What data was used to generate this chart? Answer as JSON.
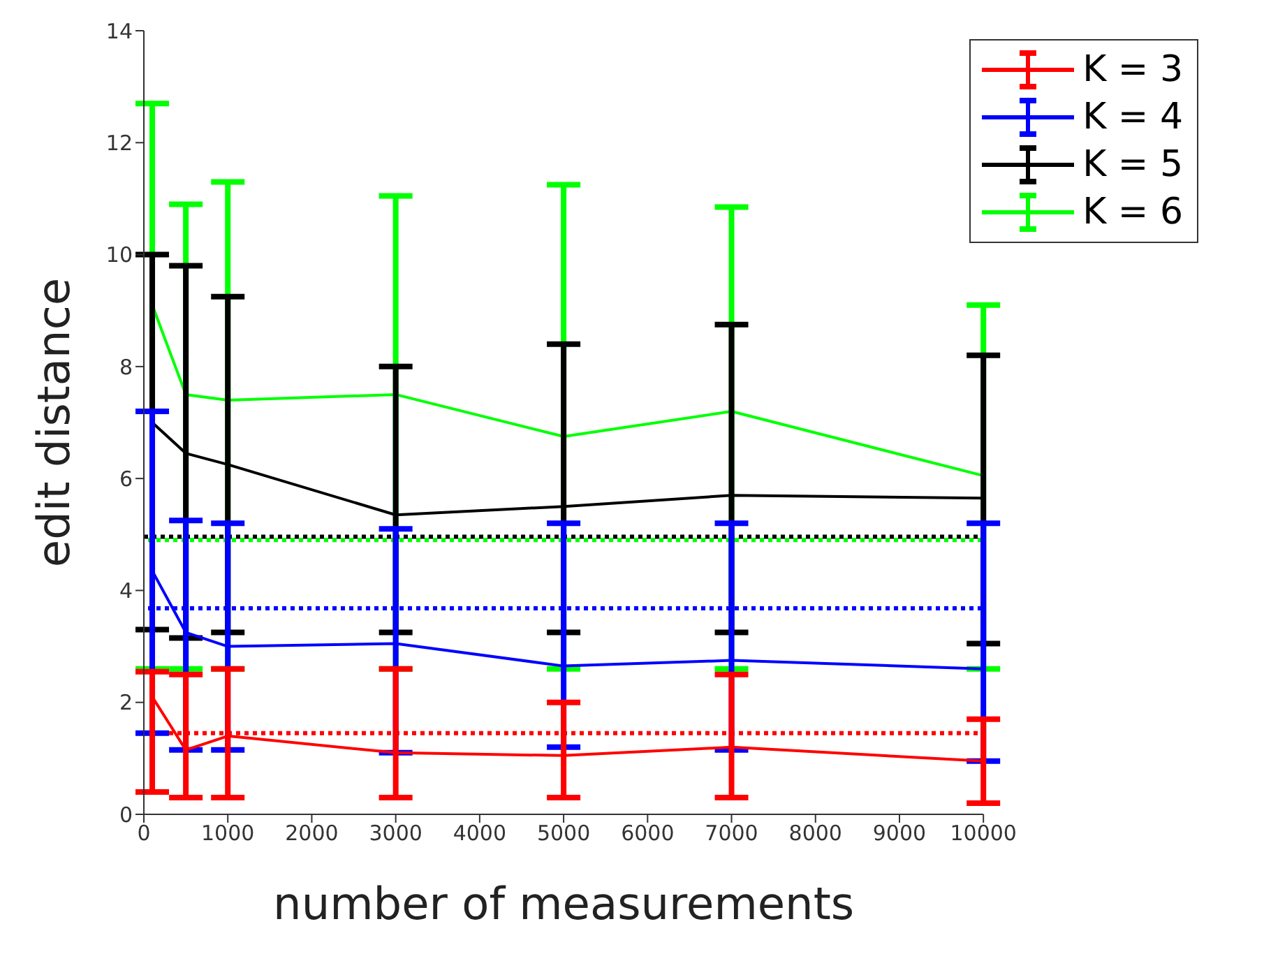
{
  "chart_data": {
    "type": "line",
    "xlabel": "number of measurements",
    "ylabel": "edit distance",
    "x": [
      100,
      500,
      1000,
      3000,
      5000,
      7000,
      10000
    ],
    "series": [
      {
        "name": "K = 3",
        "color": "#ff0000",
        "values": [
          2.1,
          1.15,
          1.4,
          1.1,
          1.05,
          1.2,
          0.95
        ],
        "errors": [
          [
            0.4,
            2.55
          ],
          [
            0.3,
            2.5
          ],
          [
            0.3,
            2.6
          ],
          [
            0.3,
            2.6
          ],
          [
            0.3,
            2.0
          ],
          [
            0.3,
            2.5
          ],
          [
            0.2,
            1.7
          ]
        ]
      },
      {
        "name": "K = 4",
        "color": "#0000ff",
        "values": [
          4.35,
          3.25,
          3.0,
          3.05,
          2.65,
          2.75,
          2.6
        ],
        "errors": [
          [
            1.45,
            7.2
          ],
          [
            1.15,
            5.25
          ],
          [
            1.15,
            5.2
          ],
          [
            1.1,
            5.1
          ],
          [
            1.2,
            5.2
          ],
          [
            1.15,
            5.2
          ],
          [
            0.95,
            5.2
          ]
        ]
      },
      {
        "name": "K = 5",
        "color": "#000000",
        "values": [
          7.0,
          6.45,
          6.25,
          5.35,
          5.5,
          5.7,
          5.65
        ],
        "errors": [
          [
            3.3,
            10.0
          ],
          [
            3.15,
            9.8
          ],
          [
            3.25,
            9.25
          ],
          [
            3.25,
            8.0
          ],
          [
            3.25,
            8.4
          ],
          [
            3.25,
            8.75
          ],
          [
            3.05,
            8.2
          ]
        ]
      },
      {
        "name": "K = 6",
        "color": "#00ff00",
        "values": [
          9.1,
          7.5,
          7.4,
          7.5,
          6.75,
          7.2,
          6.05
        ],
        "errors": [
          [
            2.6,
            12.7
          ],
          [
            2.6,
            10.9
          ],
          [
            2.6,
            11.3
          ],
          [
            2.6,
            11.05
          ],
          [
            2.6,
            11.25
          ],
          [
            2.6,
            10.85
          ],
          [
            2.6,
            9.1
          ]
        ]
      }
    ],
    "ref_lines": [
      {
        "axis": "y",
        "value": 1.45,
        "color": "#ff0000",
        "line_style": "dotted"
      },
      {
        "axis": "y",
        "value": 3.68,
        "color": "#0000ff",
        "line_style": "dotted"
      },
      {
        "axis": "y",
        "value": 4.96,
        "color": "#000000",
        "line_style": "dotted"
      },
      {
        "axis": "y",
        "value": 4.9,
        "color": "#00ff00",
        "line_style": "dotted"
      }
    ],
    "xlim": [
      0,
      10000
    ],
    "xticks": [
      0,
      1000,
      2000,
      3000,
      4000,
      5000,
      6000,
      7000,
      8000,
      9000,
      10000
    ],
    "ylim": [
      0,
      14
    ],
    "yticks": [
      0,
      2,
      4,
      6,
      8,
      10,
      12,
      14
    ],
    "grid": false,
    "legend": "top right",
    "marker": "none",
    "line_style": "solid"
  }
}
